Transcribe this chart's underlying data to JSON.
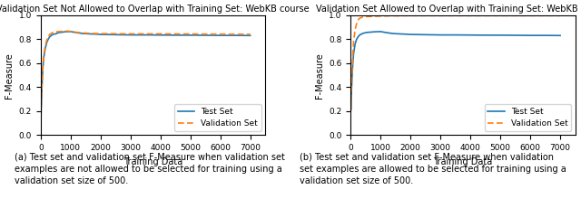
{
  "fig_width": 6.4,
  "fig_height": 2.41,
  "dpi": 100,
  "subplot1": {
    "title": "Validation Set Not Allowed to Overlap with Training Set: WebKB course",
    "xlabel": "Training Data",
    "ylabel": "F-Measure",
    "xlim": [
      0,
      7500
    ],
    "ylim": [
      0.0,
      1.0
    ],
    "xticks": [
      0,
      1000,
      2000,
      3000,
      4000,
      5000,
      6000,
      7000
    ],
    "yticks": [
      0.0,
      0.2,
      0.4,
      0.6,
      0.8,
      1.0
    ],
    "test_x": [
      10,
      20,
      40,
      60,
      80,
      100,
      150,
      200,
      250,
      300,
      400,
      500,
      600,
      700,
      800,
      900,
      1000,
      1200,
      1400,
      1600,
      1800,
      2000,
      2500,
      3000,
      3500,
      4000,
      4500,
      5000,
      5500,
      6000,
      6500,
      7000
    ],
    "test_y": [
      0.15,
      0.25,
      0.38,
      0.5,
      0.58,
      0.64,
      0.72,
      0.77,
      0.8,
      0.82,
      0.84,
      0.845,
      0.855,
      0.858,
      0.862,
      0.863,
      0.864,
      0.855,
      0.848,
      0.845,
      0.843,
      0.84,
      0.838,
      0.836,
      0.836,
      0.835,
      0.834,
      0.834,
      0.833,
      0.832,
      0.832,
      0.831
    ],
    "val_x": [
      10,
      20,
      40,
      60,
      80,
      100,
      150,
      200,
      250,
      300,
      400,
      500,
      600,
      700,
      800,
      900,
      1000,
      1200,
      1400,
      1600,
      1800,
      2000,
      2500,
      3000,
      3500,
      4000,
      4500,
      5000,
      5500,
      6000,
      6500,
      7000
    ],
    "val_y": [
      0.155,
      0.26,
      0.4,
      0.52,
      0.6,
      0.66,
      0.74,
      0.79,
      0.82,
      0.84,
      0.856,
      0.862,
      0.864,
      0.866,
      0.868,
      0.868,
      0.866,
      0.858,
      0.853,
      0.85,
      0.848,
      0.847,
      0.846,
      0.845,
      0.845,
      0.845,
      0.844,
      0.844,
      0.843,
      0.843,
      0.842,
      0.842
    ],
    "caption_line1": "(a) Test set and validation set F-Measure when validation set",
    "caption_line2": "examples are not allowed to be selected for training using a",
    "caption_line3": "validation set size of 500."
  },
  "subplot2": {
    "title": "Validation Set Allowed to Overlap with Training Set: WebKB course",
    "xlabel": "Training Data",
    "ylabel": "F-Measure",
    "xlim": [
      0,
      7500
    ],
    "ylim": [
      0.0,
      1.0
    ],
    "xticks": [
      0,
      1000,
      2000,
      3000,
      4000,
      5000,
      6000,
      7000
    ],
    "yticks": [
      0.0,
      0.2,
      0.4,
      0.6,
      0.8,
      1.0
    ],
    "test_x": [
      10,
      20,
      40,
      60,
      80,
      100,
      150,
      200,
      250,
      300,
      400,
      500,
      600,
      700,
      800,
      900,
      1000,
      1200,
      1400,
      1600,
      1800,
      2000,
      2500,
      3000,
      3500,
      4000,
      4500,
      5000,
      5500,
      6000,
      6500,
      7000
    ],
    "test_y": [
      0.21,
      0.3,
      0.43,
      0.54,
      0.62,
      0.68,
      0.76,
      0.8,
      0.82,
      0.835,
      0.848,
      0.855,
      0.858,
      0.86,
      0.862,
      0.863,
      0.864,
      0.855,
      0.848,
      0.845,
      0.843,
      0.84,
      0.838,
      0.836,
      0.836,
      0.835,
      0.834,
      0.834,
      0.833,
      0.832,
      0.832,
      0.831
    ],
    "val_x": [
      10,
      20,
      40,
      60,
      80,
      100,
      150,
      200,
      250,
      300,
      400,
      500,
      600,
      700,
      800,
      900,
      1000,
      1200,
      1400,
      1600,
      1800,
      2000,
      2500,
      3000,
      3500,
      4000,
      4500,
      5000,
      5500,
      6000,
      6500,
      7000
    ],
    "val_y": [
      0.21,
      0.33,
      0.48,
      0.6,
      0.7,
      0.78,
      0.88,
      0.93,
      0.96,
      0.975,
      0.984,
      0.988,
      0.99,
      0.991,
      0.992,
      0.993,
      0.994,
      0.995,
      0.996,
      0.996,
      0.997,
      0.997,
      0.997,
      0.997,
      0.997,
      0.997,
      0.997,
      0.997,
      0.997,
      0.997,
      0.997,
      0.997
    ],
    "caption_line1": "(b) Test set and validation set F-Measure when validation",
    "caption_line2": "set examples are allowed to be selected for training using a",
    "caption_line3": "validation set size of 500."
  },
  "test_color": "#1f77b4",
  "val_color": "#ff7f0e",
  "test_label": "Test Set",
  "val_label": "Validation Set",
  "title_fontsize": 7.0,
  "label_fontsize": 7.0,
  "tick_fontsize": 6.5,
  "legend_fontsize": 6.5,
  "caption_fontsize": 7.0,
  "line_width": 1.2
}
